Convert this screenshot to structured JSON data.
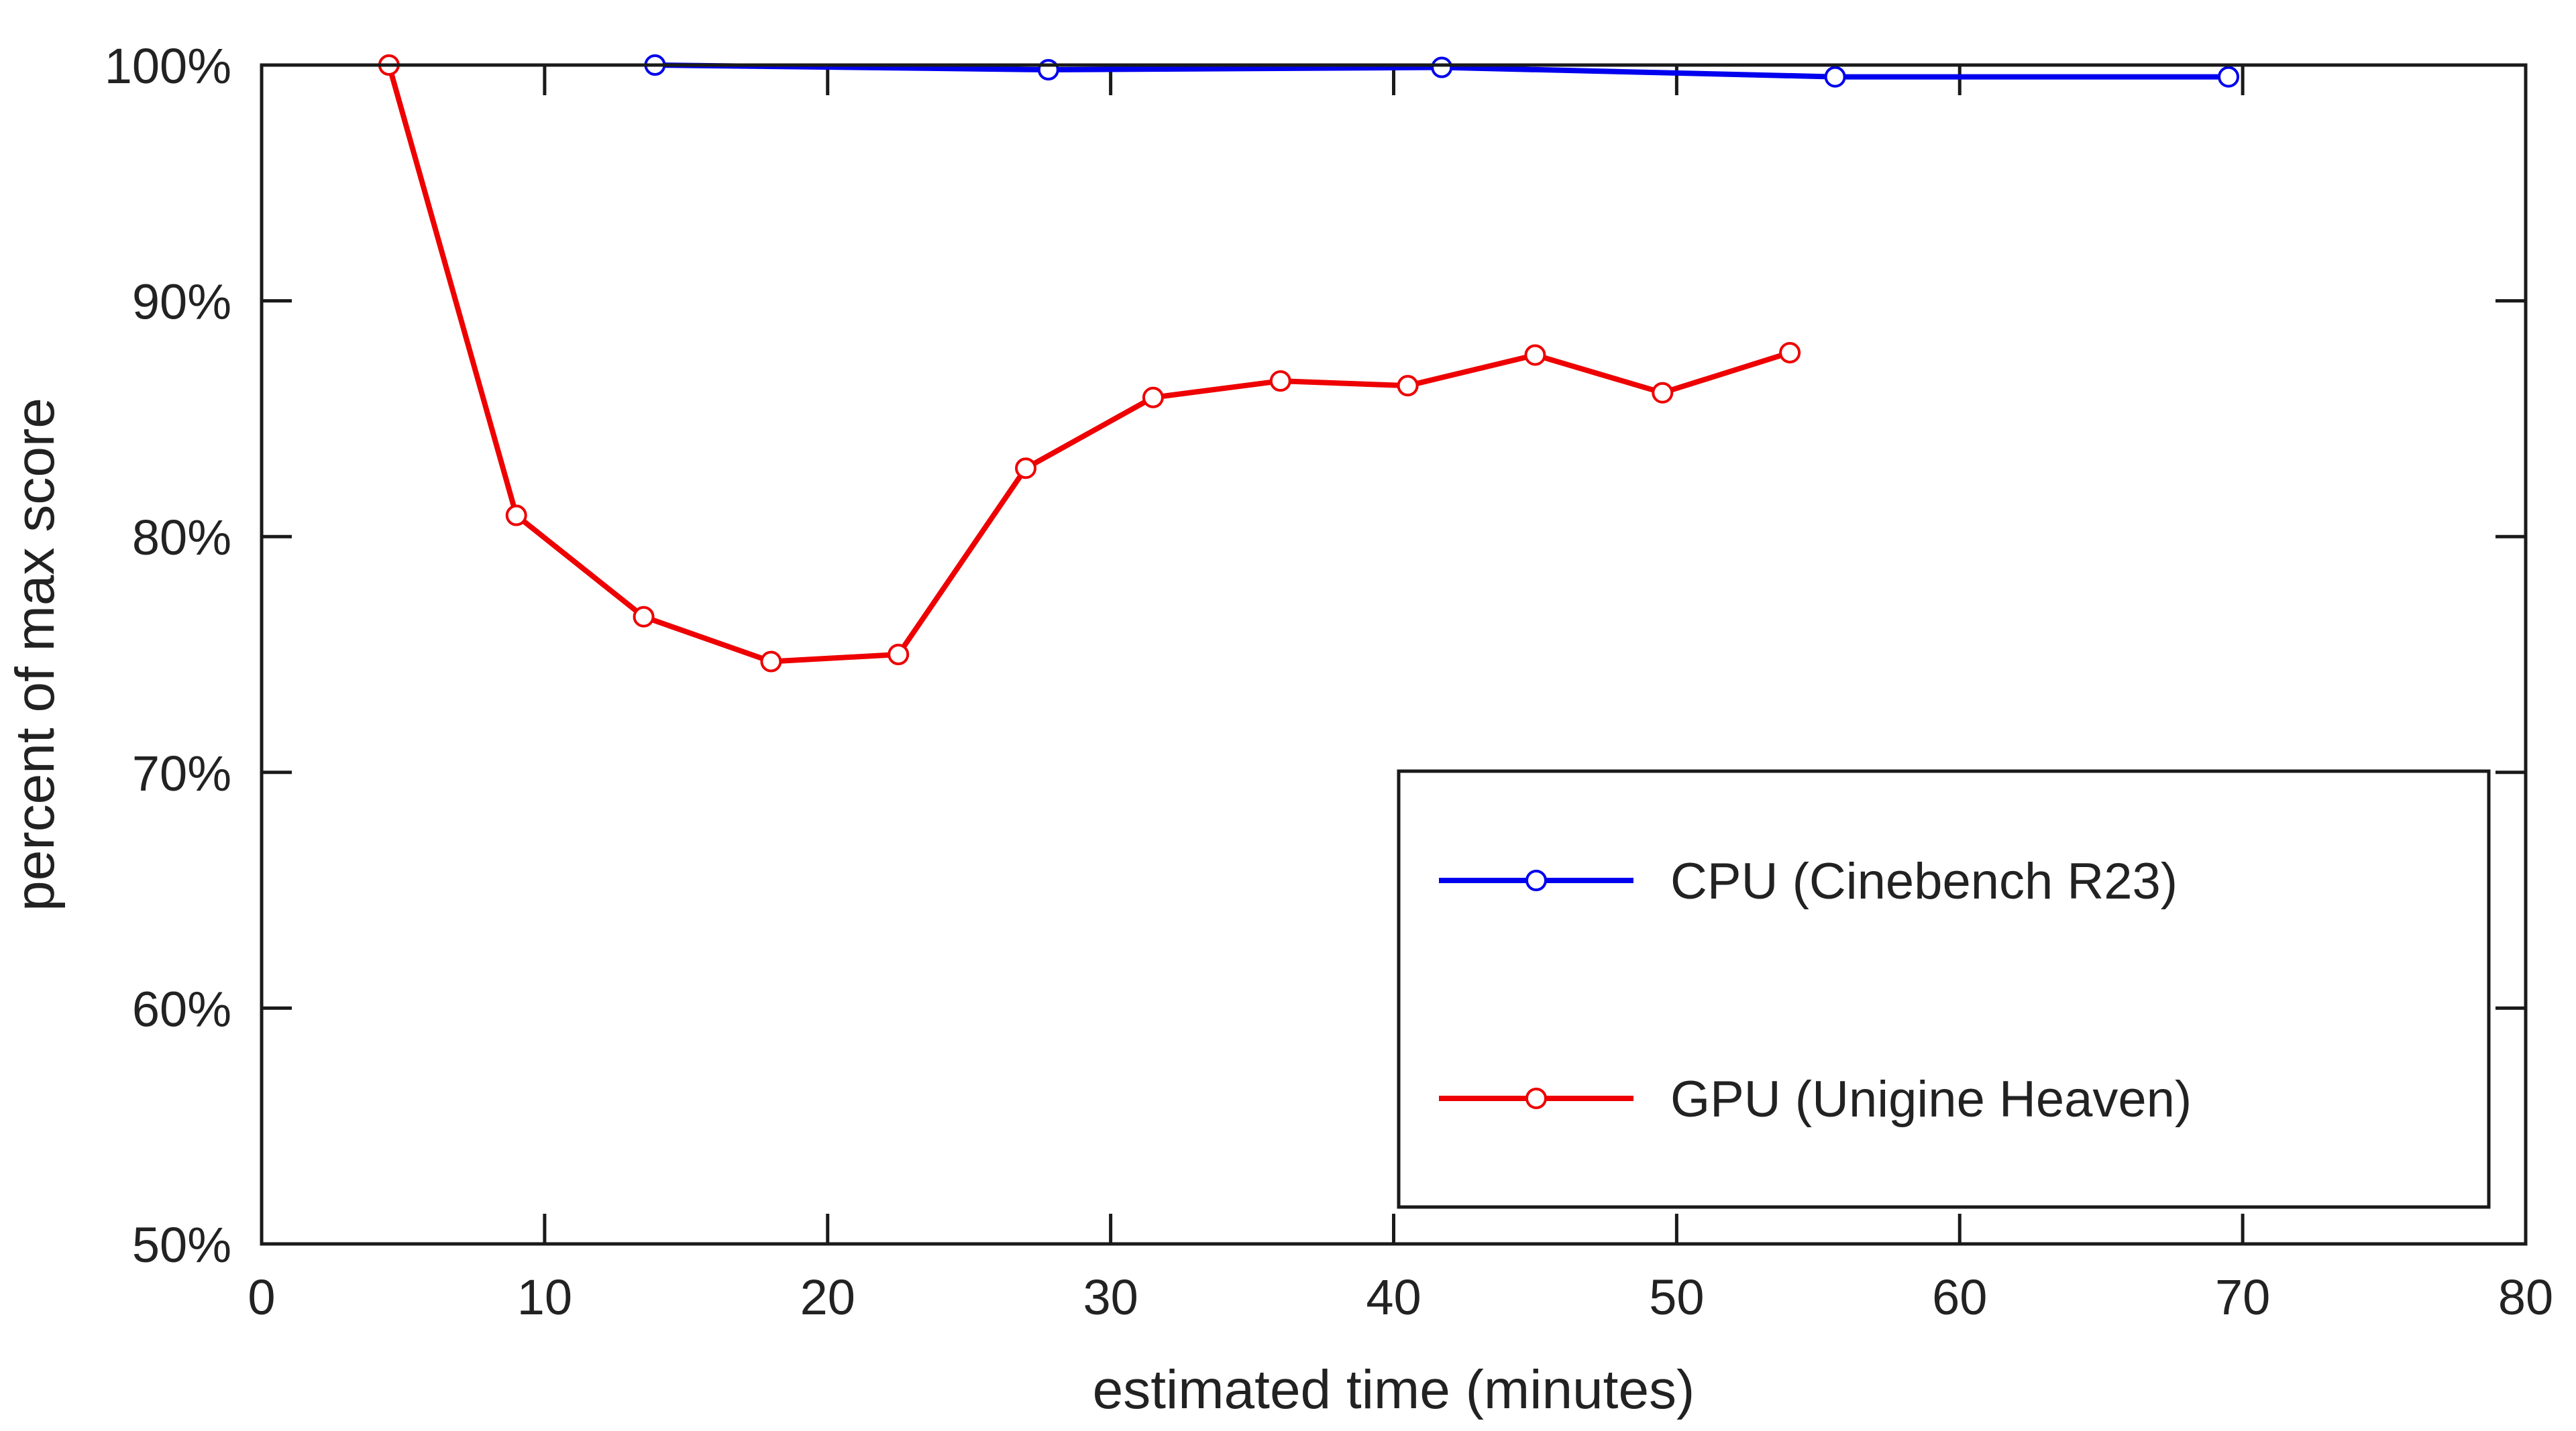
{
  "chart_data": {
    "type": "line",
    "title": "",
    "xlabel": "estimated time (minutes)",
    "ylabel": "percent of max score",
    "xlim": [
      0,
      80
    ],
    "ylim": [
      50,
      100
    ],
    "x_ticks": [
      0,
      10,
      20,
      30,
      40,
      50,
      60,
      70,
      80
    ],
    "x_tick_labels": [
      "0",
      "10",
      "20",
      "30",
      "40",
      "50",
      "60",
      "70",
      "80"
    ],
    "y_ticks": [
      50,
      60,
      70,
      80,
      90,
      100
    ],
    "y_tick_labels": [
      "50%",
      "60%",
      "70%",
      "80%",
      "90%",
      "100%"
    ],
    "grid": false,
    "legend_position": "bottom-right",
    "series": [
      {
        "name": "CPU (Cinebench R23)",
        "color": "#0000ee",
        "marker": "open-circle",
        "x": [
          13.9,
          27.8,
          41.7,
          55.6,
          69.5
        ],
        "y": [
          100.0,
          99.8,
          99.9,
          99.5,
          99.5
        ]
      },
      {
        "name": "GPU (Unigine Heaven)",
        "color": "#ee0000",
        "marker": "open-circle",
        "x": [
          4.5,
          9.0,
          13.5,
          18.0,
          22.5,
          27.0,
          31.5,
          36.0,
          40.5,
          45.0,
          49.5,
          54.0
        ],
        "y": [
          100.0,
          80.9,
          76.6,
          74.7,
          75.0,
          82.9,
          85.9,
          86.6,
          86.4,
          87.7,
          86.1,
          87.8
        ]
      }
    ]
  }
}
